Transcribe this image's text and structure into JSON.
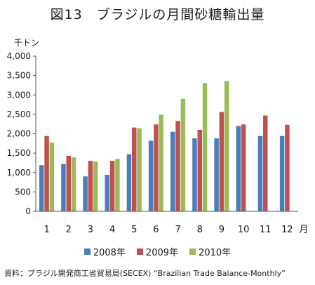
{
  "title": "図13　ブラジルの月間砂糖輸出量",
  "source": "資料：ブラジル開発商工省貿易局(SECEX) “Brazilian Trade Balance-Monthly”",
  "chart_data": {
    "type": "bar",
    "title": "図13　ブラジルの月間砂糖輸出量",
    "ylabel": "千トン",
    "xlabel": "月",
    "ylim": [
      0,
      4000
    ],
    "yticks": [
      0,
      500,
      1000,
      1500,
      2000,
      2500,
      3000,
      3500,
      4000
    ],
    "ytick_labels": [
      "0",
      "500",
      "1,000",
      "1,500",
      "2,000",
      "2,500",
      "3,000",
      "3,500",
      "4,000"
    ],
    "categories": [
      "1",
      "2",
      "3",
      "4",
      "5",
      "6",
      "7",
      "8",
      "9",
      "10",
      "11",
      "12"
    ],
    "series": [
      {
        "name": "2008年",
        "color": "#4a7ebb",
        "values": [
          1190,
          1220,
          900,
          940,
          1470,
          1820,
          2050,
          1880,
          1880,
          2200,
          1940,
          1940
        ]
      },
      {
        "name": "2009年",
        "color": "#c0504d",
        "values": [
          1940,
          1430,
          1300,
          1300,
          2160,
          2240,
          2330,
          2100,
          2560,
          2240,
          2470,
          2230
        ]
      },
      {
        "name": "2010年",
        "color": "#9bbb59",
        "values": [
          1770,
          1390,
          1280,
          1350,
          2140,
          2490,
          2900,
          3310,
          3360,
          null,
          null,
          null
        ]
      }
    ],
    "legend": "bottom",
    "grid": false
  }
}
